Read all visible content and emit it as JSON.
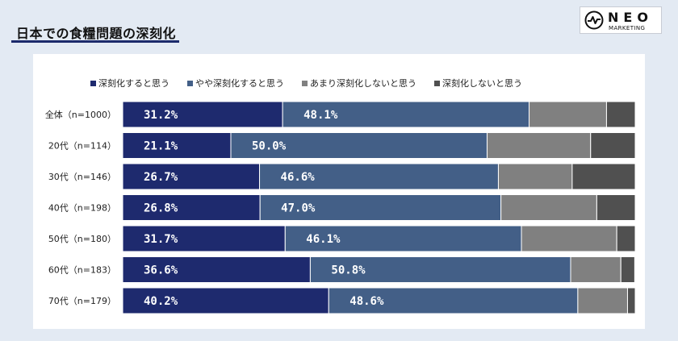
{
  "page": {
    "title": "日本での食糧問題の深刻化"
  },
  "logo": {
    "main": "NEO",
    "sub": "MARKETING"
  },
  "chart_data": {
    "type": "bar",
    "orientation": "horizontal",
    "stacked": true,
    "categories": [
      "全体（n=1000）",
      "20代（n=114）",
      "30代（n=146）",
      "40代（n=198）",
      "50代（n=180）",
      "60代（n=183）",
      "70代（n=179）"
    ],
    "series": [
      {
        "name": "深刻化すると思う",
        "color": "#1e2a6e",
        "values": [
          31.2,
          21.1,
          26.7,
          26.8,
          31.7,
          36.6,
          40.2
        ],
        "labels": [
          "31.2%",
          "21.1%",
          "26.7%",
          "26.8%",
          "31.7%",
          "36.6%",
          "40.2%"
        ]
      },
      {
        "name": "やや深刻化すると思う",
        "color": "#435f87",
        "values": [
          48.1,
          50.0,
          46.6,
          47.0,
          46.1,
          50.8,
          48.6
        ],
        "labels": [
          "48.1%",
          "50.0%",
          "46.6%",
          "47.0%",
          "46.1%",
          "50.8%",
          "48.6%"
        ]
      },
      {
        "name": "あまり深刻化しないと思う",
        "color": "#808080",
        "values": [
          15.1,
          20.2,
          14.4,
          18.7,
          18.6,
          9.8,
          9.7
        ]
      },
      {
        "name": "深刻化しないと思う",
        "color": "#505050",
        "values": [
          5.6,
          8.7,
          12.3,
          7.5,
          3.6,
          2.7,
          1.5
        ]
      }
    ],
    "xlim": [
      0,
      100
    ],
    "legend": "top",
    "grid": false
  }
}
